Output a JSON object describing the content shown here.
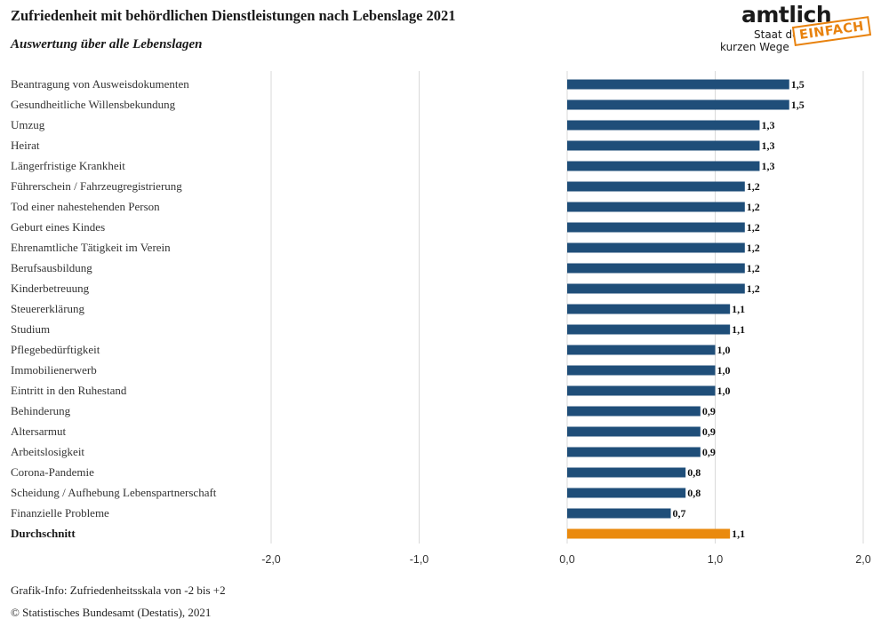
{
  "header": {
    "title": "Zufriedenheit mit behördlichen Dienstleistungen nach Lebenslage 2021",
    "subtitle": "Auswertung über alle Lebenslagen"
  },
  "logo": {
    "word": "amtlich",
    "stamp": "EINFACH",
    "tagline_line1": "Staat der",
    "tagline_line2": "kurzen Wege",
    "stamp_color": "#e8820e"
  },
  "chart_data": {
    "type": "bar",
    "orientation": "horizontal",
    "categories": [
      "Beantragung von Ausweisdokumenten",
      "Gesundheitliche Willensbekundung",
      "Umzug",
      "Heirat",
      "Längerfristige Krankheit",
      "Führerschein / Fahrzeugregistrierung",
      "Tod einer nahestehenden Person",
      "Geburt eines Kindes",
      "Ehrenamtliche Tätigkeit im Verein",
      "Berufsausbildung",
      "Kinderbetreuung",
      "Steuererklärung",
      "Studium",
      "Pflegebedürftigkeit",
      "Immobilienerwerb",
      "Eintritt in den Ruhestand",
      "Behinderung",
      "Altersarmut",
      "Arbeitslosigkeit",
      "Corona-Pandemie",
      "Scheidung / Aufhebung Lebenspartnerschaft",
      "Finanzielle Probleme",
      "Durchschnitt"
    ],
    "values": [
      1.5,
      1.5,
      1.3,
      1.3,
      1.3,
      1.2,
      1.2,
      1.2,
      1.2,
      1.2,
      1.2,
      1.1,
      1.1,
      1.0,
      1.0,
      1.0,
      0.9,
      0.9,
      0.9,
      0.8,
      0.8,
      0.7,
      1.1
    ],
    "value_labels": [
      "1,5",
      "1,5",
      "1,3",
      "1,3",
      "1,3",
      "1,2",
      "1,2",
      "1,2",
      "1,2",
      "1,2",
      "1,2",
      "1,1",
      "1,1",
      "1,0",
      "1,0",
      "1,0",
      "0,9",
      "0,9",
      "0,9",
      "0,8",
      "0,8",
      "0,7",
      "1,1"
    ],
    "highlight_index": 22,
    "colors": {
      "bar": "#1f4e79",
      "highlight": "#ea8a0e",
      "grid": "#d9d9d9"
    },
    "xlim": [
      -2.0,
      2.0
    ],
    "xticks": [
      -2.0,
      -1.0,
      0.0,
      1.0,
      2.0
    ],
    "xtick_labels": [
      "-2,0",
      "-1,0",
      "0,0",
      "1,0",
      "2,0"
    ],
    "grid": true,
    "legend": "none"
  },
  "footer": {
    "info": "Grafik-Info: Zufriedenheitsskala von -2 bis +2",
    "source": "© Statistisches Bundesamt (Destatis), 2021"
  }
}
